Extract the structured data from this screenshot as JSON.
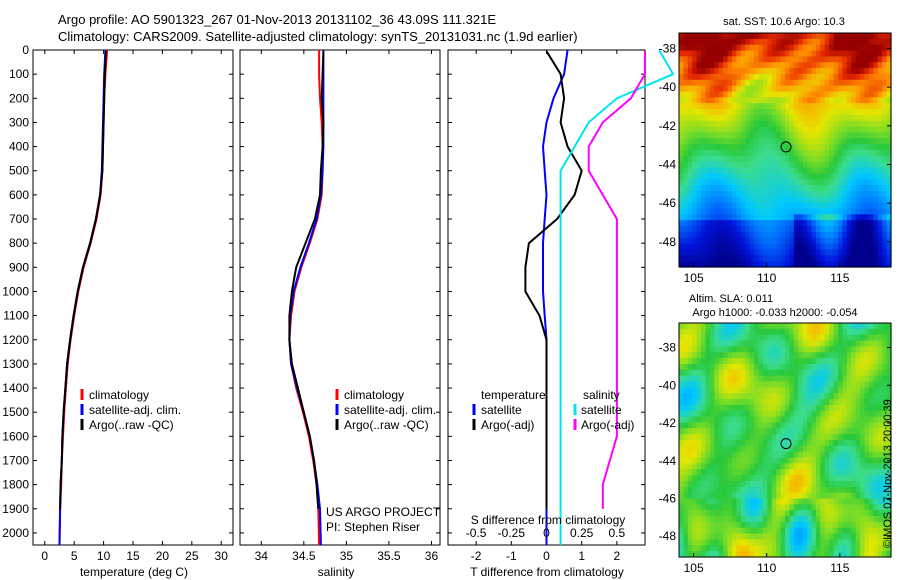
{
  "titles": {
    "line1": "Argo profile: AO 5901323_267 01-Nov-2013 20131102_36 43.09S 111.321E",
    "line2": "Climatology: CARS2009. Satellite-adjusted climatology: synTS_20131031.nc (1.9d earlier)"
  },
  "depth_ticks": [
    0,
    100,
    200,
    300,
    400,
    500,
    600,
    700,
    800,
    900,
    1000,
    1100,
    1200,
    1300,
    1400,
    1500,
    1600,
    1700,
    1800,
    1900,
    2000
  ],
  "colors": {
    "climatology": "#ff0000",
    "satellite": "#0000ff",
    "argo": "#000000",
    "sal_satellite": "#00e5ee",
    "sal_argo": "#ff00ff"
  },
  "chart_data": [
    {
      "type": "line",
      "xlabel": "temperature (deg C)",
      "ylabel": "",
      "xlim": [
        -2,
        32
      ],
      "ylim": [
        2050,
        0
      ],
      "xticks": [
        0,
        5,
        10,
        15,
        20,
        25,
        30
      ],
      "legend": [
        "climatology",
        "satellite-adj. clim.",
        "Argo(..raw -QC)"
      ],
      "legend_placement": "bottom-center",
      "series": [
        {
          "name": "climatology",
          "x": [
            10.6,
            10.3,
            10.1,
            10.0,
            9.9,
            9.8,
            9.5,
            8.8,
            7.8,
            6.6,
            5.7,
            5.0,
            4.4,
            3.9,
            3.6,
            3.3,
            3.1,
            2.9,
            2.8,
            2.6,
            2.5
          ],
          "y": [
            0,
            100,
            200,
            300,
            400,
            500,
            600,
            700,
            800,
            900,
            1000,
            1100,
            1200,
            1300,
            1400,
            1500,
            1600,
            1700,
            1800,
            1900,
            2050
          ]
        },
        {
          "name": "satellite-adj. clim.",
          "x": [
            10.3,
            10.1,
            10.0,
            9.9,
            9.8,
            9.7,
            9.4,
            8.7,
            7.7,
            6.5,
            5.6,
            4.9,
            4.3,
            3.8,
            3.5,
            3.2,
            3.0,
            2.9,
            2.7,
            2.6,
            2.5
          ],
          "y": [
            0,
            100,
            200,
            300,
            400,
            500,
            600,
            700,
            800,
            900,
            1000,
            1100,
            1200,
            1300,
            1400,
            1500,
            1600,
            1700,
            1800,
            1900,
            2050
          ]
        },
        {
          "name": "Argo(..raw -QC)",
          "x": [
            10.4,
            10.2,
            10.1,
            10.0,
            9.9,
            9.8,
            9.4,
            8.7,
            7.7,
            6.5,
            5.6,
            4.9,
            4.3,
            3.8,
            3.5,
            3.2,
            3.0,
            2.9,
            2.7,
            2.6
          ],
          "y": [
            5,
            100,
            200,
            300,
            400,
            500,
            600,
            700,
            800,
            900,
            1000,
            1100,
            1200,
            1300,
            1400,
            1500,
            1600,
            1700,
            1800,
            1900
          ]
        }
      ]
    },
    {
      "type": "line",
      "xlabel": "salinity",
      "ylabel": "",
      "xlim": [
        33.75,
        36.1
      ],
      "ylim": [
        2050,
        0
      ],
      "xticks": [
        34,
        34.5,
        35,
        35.5,
        36
      ],
      "xtick_labels": [
        "34",
        "34.5",
        "35",
        "35.5",
        "36"
      ],
      "legend": [
        "climatology",
        "satellite-adj. clim.",
        "Argo(..raw -QC)"
      ],
      "legend_placement": "bottom-center",
      "annotation": [
        "US ARGO PROJECT",
        "PI: Stephen Riser"
      ],
      "series": [
        {
          "name": "climatology",
          "x": [
            34.68,
            34.68,
            34.69,
            34.71,
            34.72,
            34.72,
            34.71,
            34.66,
            34.57,
            34.47,
            34.39,
            34.35,
            34.33,
            34.35,
            34.41,
            34.49,
            34.56,
            34.61,
            34.65,
            34.67,
            34.68
          ],
          "y": [
            0,
            100,
            200,
            300,
            400,
            500,
            600,
            700,
            800,
            900,
            1000,
            1100,
            1200,
            1300,
            1400,
            1500,
            1600,
            1700,
            1800,
            1900,
            2050
          ]
        },
        {
          "name": "satellite-adj. clim.",
          "x": [
            34.73,
            34.73,
            34.73,
            34.73,
            34.73,
            34.72,
            34.7,
            34.65,
            34.56,
            34.46,
            34.38,
            34.34,
            34.33,
            34.35,
            34.42,
            34.5,
            34.57,
            34.62,
            34.66,
            34.69,
            34.7
          ],
          "y": [
            0,
            100,
            200,
            300,
            400,
            500,
            600,
            700,
            800,
            900,
            1000,
            1100,
            1200,
            1300,
            1400,
            1500,
            1600,
            1700,
            1800,
            1900,
            2050
          ]
        },
        {
          "name": "Argo(..raw -QC)",
          "x": [
            34.73,
            34.72,
            34.71,
            34.73,
            34.72,
            34.7,
            34.69,
            34.63,
            34.52,
            34.41,
            34.36,
            34.33,
            34.33,
            34.36,
            34.43,
            34.5,
            34.57,
            34.62,
            34.65,
            34.67
          ],
          "y": [
            5,
            100,
            200,
            300,
            400,
            500,
            600,
            700,
            800,
            900,
            1000,
            1100,
            1200,
            1300,
            1400,
            1500,
            1600,
            1700,
            1800,
            1900
          ]
        }
      ]
    },
    {
      "type": "line",
      "xlabel": "T difference from climatology",
      "xlabel_top": "S difference from climatology",
      "ylabel": "",
      "xlim": [
        -2.8,
        2.8
      ],
      "ylim": [
        2050,
        0
      ],
      "xticks": [
        -2,
        -1,
        0,
        1,
        2
      ],
      "xtick_labels": [
        "-2",
        "-1",
        "0",
        "1",
        "2"
      ],
      "xticks_top": [
        "-0.5",
        "-0.25",
        "0",
        "0.25",
        "0.5"
      ],
      "legend_temperature": [
        "temperature",
        "satellite",
        "Argo(-adj)"
      ],
      "legend_salinity": [
        "salinity",
        "satellite",
        "Argo(-adj)"
      ],
      "legend_placement": "bottom",
      "series": [
        {
          "name": "satellite",
          "x": [
            0.6,
            0.5,
            0.2,
            0,
            -0.1,
            -0.05,
            0,
            -0.05,
            -0.1,
            -0.1,
            -0.1,
            -0.05,
            0,
            0,
            0,
            0,
            0,
            0,
            0,
            0,
            0
          ],
          "y": [
            0,
            100,
            200,
            300,
            400,
            500,
            600,
            700,
            800,
            900,
            1000,
            1100,
            1200,
            1300,
            1400,
            1500,
            1600,
            1700,
            1800,
            1900,
            2050
          ]
        },
        {
          "name": "Argo(-adj)",
          "x": [
            0,
            0.4,
            0.5,
            0.4,
            0.6,
            1.0,
            0.8,
            0.3,
            -0.5,
            -0.6,
            -0.6,
            -0.2,
            0,
            0,
            0,
            0,
            0,
            0,
            0,
            0
          ],
          "y": [
            5,
            100,
            200,
            300,
            400,
            500,
            600,
            700,
            800,
            900,
            1000,
            1100,
            1200,
            1300,
            1400,
            1500,
            1600,
            1700,
            1800,
            1900
          ]
        },
        {
          "name": "satellite",
          "x": [
            0.8,
            0.9,
            0.5,
            0.3,
            0.2,
            0.1,
            0.1,
            0.1,
            0.1,
            0.1,
            0.1,
            0.1,
            0.1,
            0.1,
            0.1,
            0.1,
            0.1,
            0.1,
            0.1,
            0.1,
            0.1
          ],
          "y": [
            0,
            100,
            200,
            300,
            400,
            500,
            600,
            700,
            800,
            900,
            1000,
            1100,
            1200,
            1300,
            1400,
            1500,
            1600,
            1700,
            1800,
            1900,
            2050
          ]
        },
        {
          "name": "Argo(-adj)",
          "x": [
            0.7,
            0.7,
            0.6,
            0.4,
            0.3,
            0.3,
            0.4,
            0.5,
            0.5,
            0.5,
            0.5,
            0.5,
            0.5,
            0.5,
            0.5,
            0.5,
            0.5,
            0.45,
            0.4,
            0.4
          ],
          "y": [
            5,
            100,
            200,
            300,
            400,
            500,
            600,
            700,
            800,
            900,
            1000,
            1100,
            1200,
            1300,
            1400,
            1500,
            1600,
            1700,
            1800,
            1900
          ]
        }
      ]
    },
    {
      "type": "heatmap",
      "title": "sat. SST: 10.6 Argo: 10.3",
      "xlabel": "",
      "ylabel": "",
      "xlim": [
        104,
        118.5
      ],
      "ylim": [
        -49.3,
        -37.2
      ],
      "xticks": [
        "105",
        "110",
        "115"
      ],
      "yticks": [
        "-38",
        "-40",
        "-42",
        "-44",
        "-46",
        "-48"
      ],
      "marker": {
        "lon": 111.32,
        "lat": -43.09
      }
    },
    {
      "type": "heatmap",
      "title": [
        "Altim. SLA: 0.011",
        "Argo h1000: -0.033 h2000: -0.054"
      ],
      "xlabel": "",
      "ylabel": "",
      "xlim": [
        104,
        118.5
      ],
      "ylim": [
        -49.1,
        -36.7
      ],
      "xticks": [
        "105",
        "110",
        "115"
      ],
      "yticks": [
        "-38",
        "-40",
        "-42",
        "-44",
        "-46",
        "-48"
      ],
      "marker": {
        "lon": 111.32,
        "lat": -43.09
      }
    }
  ],
  "side_label": "©IMOS 07-Nov-2013 20:00:39"
}
